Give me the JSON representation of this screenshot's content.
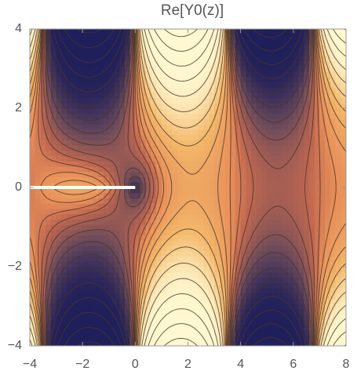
{
  "chart_data": {
    "type": "contour",
    "title": "Re[Y0(z)]",
    "xlim": [
      -4,
      8
    ],
    "ylim": [
      -4,
      4
    ],
    "xticks": [
      {
        "value": -4,
        "label": "−4"
      },
      {
        "value": -2,
        "label": "−2"
      },
      0,
      2,
      4,
      6,
      8
    ],
    "yticks": [
      {
        "value": -4,
        "label": "−4"
      },
      {
        "value": -2,
        "label": "−2"
      },
      0,
      2,
      4
    ]
  }
}
